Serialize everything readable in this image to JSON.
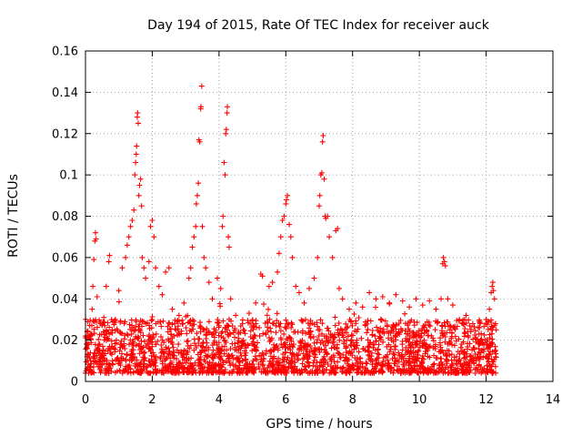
{
  "chart_data": {
    "type": "scatter",
    "title": "Day 194 of 2015, Rate Of TEC Index for receiver auck",
    "xlabel": "GPS time / hours",
    "ylabel": "ROTI / TECUs",
    "xlim": [
      0,
      14
    ],
    "ylim": [
      0,
      0.16
    ],
    "x_ticks": [
      0,
      2,
      4,
      6,
      8,
      10,
      12,
      14
    ],
    "y_ticks": [
      0,
      0.02,
      0.04,
      0.06,
      0.08,
      0.1,
      0.12,
      0.14,
      0.16
    ],
    "x_tick_labels": [
      "0",
      "2",
      "4",
      "6",
      "8",
      "10",
      "12",
      "14"
    ],
    "y_tick_labels": [
      "0",
      "0.02",
      "0.04",
      "0.06",
      "0.08",
      "0.1",
      "0.12",
      "0.14",
      "0.16"
    ],
    "grid": true,
    "marker": "+",
    "series_color": "#ff0000",
    "series": [
      {
        "name": "ROTI",
        "points": [
          [
            0.05,
            0.012
          ],
          [
            0.1,
            0.018
          ],
          [
            0.15,
            0.022
          ],
          [
            0.2,
            0.035
          ],
          [
            0.22,
            0.046
          ],
          [
            0.25,
            0.059
          ],
          [
            0.28,
            0.068
          ],
          [
            0.3,
            0.072
          ],
          [
            0.32,
            0.069
          ],
          [
            0.35,
            0.041
          ],
          [
            0.45,
            0.028
          ],
          [
            0.55,
            0.031
          ],
          [
            0.62,
            0.046
          ],
          [
            0.7,
            0.058
          ],
          [
            0.72,
            0.061
          ],
          [
            0.8,
            0.025
          ],
          [
            0.9,
            0.03
          ],
          [
            1.0,
            0.044
          ],
          [
            1.1,
            0.055
          ],
          [
            1.2,
            0.06
          ],
          [
            1.25,
            0.066
          ],
          [
            1.3,
            0.07
          ],
          [
            1.35,
            0.075
          ],
          [
            1.4,
            0.078
          ],
          [
            1.45,
            0.083
          ],
          [
            1.48,
            0.1
          ],
          [
            1.5,
            0.106
          ],
          [
            1.52,
            0.11
          ],
          [
            1.53,
            0.114
          ],
          [
            1.55,
            0.128
          ],
          [
            1.56,
            0.13
          ],
          [
            1.58,
            0.125
          ],
          [
            1.6,
            0.09
          ],
          [
            1.62,
            0.095
          ],
          [
            1.65,
            0.098
          ],
          [
            1.68,
            0.085
          ],
          [
            1.7,
            0.06
          ],
          [
            1.75,
            0.055
          ],
          [
            1.8,
            0.05
          ],
          [
            1.9,
            0.058
          ],
          [
            1.95,
            0.075
          ],
          [
            2.0,
            0.078
          ],
          [
            2.05,
            0.07
          ],
          [
            2.1,
            0.055
          ],
          [
            2.2,
            0.046
          ],
          [
            2.3,
            0.042
          ],
          [
            2.4,
            0.053
          ],
          [
            2.5,
            0.055
          ],
          [
            2.6,
            0.035
          ],
          [
            2.8,
            0.032
          ],
          [
            2.95,
            0.038
          ],
          [
            3.1,
            0.05
          ],
          [
            3.15,
            0.055
          ],
          [
            3.2,
            0.065
          ],
          [
            3.25,
            0.07
          ],
          [
            3.3,
            0.075
          ],
          [
            3.32,
            0.086
          ],
          [
            3.35,
            0.09
          ],
          [
            3.38,
            0.096
          ],
          [
            3.4,
            0.117
          ],
          [
            3.42,
            0.116
          ],
          [
            3.45,
            0.132
          ],
          [
            3.46,
            0.133
          ],
          [
            3.48,
            0.143
          ],
          [
            3.5,
            0.075
          ],
          [
            3.55,
            0.06
          ],
          [
            3.6,
            0.055
          ],
          [
            3.7,
            0.048
          ],
          [
            3.8,
            0.04
          ],
          [
            3.95,
            0.05
          ],
          [
            4.05,
            0.045
          ],
          [
            4.1,
            0.075
          ],
          [
            4.12,
            0.08
          ],
          [
            4.15,
            0.106
          ],
          [
            4.18,
            0.1
          ],
          [
            4.2,
            0.12
          ],
          [
            4.22,
            0.122
          ],
          [
            4.24,
            0.13
          ],
          [
            4.25,
            0.133
          ],
          [
            4.28,
            0.07
          ],
          [
            4.3,
            0.065
          ],
          [
            4.35,
            0.04
          ],
          [
            4.5,
            0.032
          ],
          [
            4.7,
            0.028
          ],
          [
            4.9,
            0.033
          ],
          [
            5.1,
            0.038
          ],
          [
            5.25,
            0.052
          ],
          [
            5.3,
            0.051
          ],
          [
            5.5,
            0.046
          ],
          [
            5.6,
            0.048
          ],
          [
            5.75,
            0.053
          ],
          [
            5.8,
            0.062
          ],
          [
            5.85,
            0.07
          ],
          [
            5.9,
            0.078
          ],
          [
            5.95,
            0.08
          ],
          [
            6.0,
            0.086
          ],
          [
            6.02,
            0.088
          ],
          [
            6.05,
            0.09
          ],
          [
            6.1,
            0.076
          ],
          [
            6.15,
            0.07
          ],
          [
            6.2,
            0.06
          ],
          [
            6.3,
            0.046
          ],
          [
            6.4,
            0.043
          ],
          [
            6.55,
            0.038
          ],
          [
            6.7,
            0.045
          ],
          [
            6.85,
            0.05
          ],
          [
            6.95,
            0.06
          ],
          [
            7.0,
            0.085
          ],
          [
            7.02,
            0.09
          ],
          [
            7.05,
            0.1
          ],
          [
            7.08,
            0.101
          ],
          [
            7.1,
            0.116
          ],
          [
            7.12,
            0.119
          ],
          [
            7.15,
            0.098
          ],
          [
            7.18,
            0.08
          ],
          [
            7.2,
            0.079
          ],
          [
            7.25,
            0.08
          ],
          [
            7.3,
            0.07
          ],
          [
            7.4,
            0.06
          ],
          [
            7.5,
            0.073
          ],
          [
            7.55,
            0.074
          ],
          [
            7.6,
            0.045
          ],
          [
            7.7,
            0.04
          ],
          [
            7.9,
            0.035
          ],
          [
            8.1,
            0.038
          ],
          [
            8.3,
            0.036
          ],
          [
            8.5,
            0.043
          ],
          [
            8.7,
            0.04
          ],
          [
            8.9,
            0.041
          ],
          [
            9.1,
            0.038
          ],
          [
            9.3,
            0.042
          ],
          [
            9.5,
            0.039
          ],
          [
            9.7,
            0.036
          ],
          [
            9.9,
            0.04
          ],
          [
            10.1,
            0.037
          ],
          [
            10.3,
            0.039
          ],
          [
            10.5,
            0.035
          ],
          [
            10.65,
            0.04
          ],
          [
            10.7,
            0.057
          ],
          [
            10.72,
            0.06
          ],
          [
            10.75,
            0.058
          ],
          [
            10.78,
            0.056
          ],
          [
            10.85,
            0.04
          ],
          [
            11.0,
            0.037
          ],
          [
            11.2,
            0.03
          ],
          [
            11.4,
            0.032
          ],
          [
            11.6,
            0.028
          ],
          [
            11.8,
            0.026
          ],
          [
            12.0,
            0.03
          ],
          [
            12.1,
            0.035
          ],
          [
            12.15,
            0.043
          ],
          [
            12.18,
            0.046
          ],
          [
            12.2,
            0.048
          ],
          [
            12.22,
            0.044
          ],
          [
            12.25,
            0.04
          ],
          [
            12.28,
            0.028
          ],
          [
            12.3,
            0.025
          ]
        ]
      }
    ],
    "dense_band": {
      "description": "dense cloud of low ROTI values across the whole day",
      "x_range": [
        0,
        12.3
      ],
      "typical_y_range": [
        0.004,
        0.03
      ],
      "approx_count": 2200
    }
  }
}
